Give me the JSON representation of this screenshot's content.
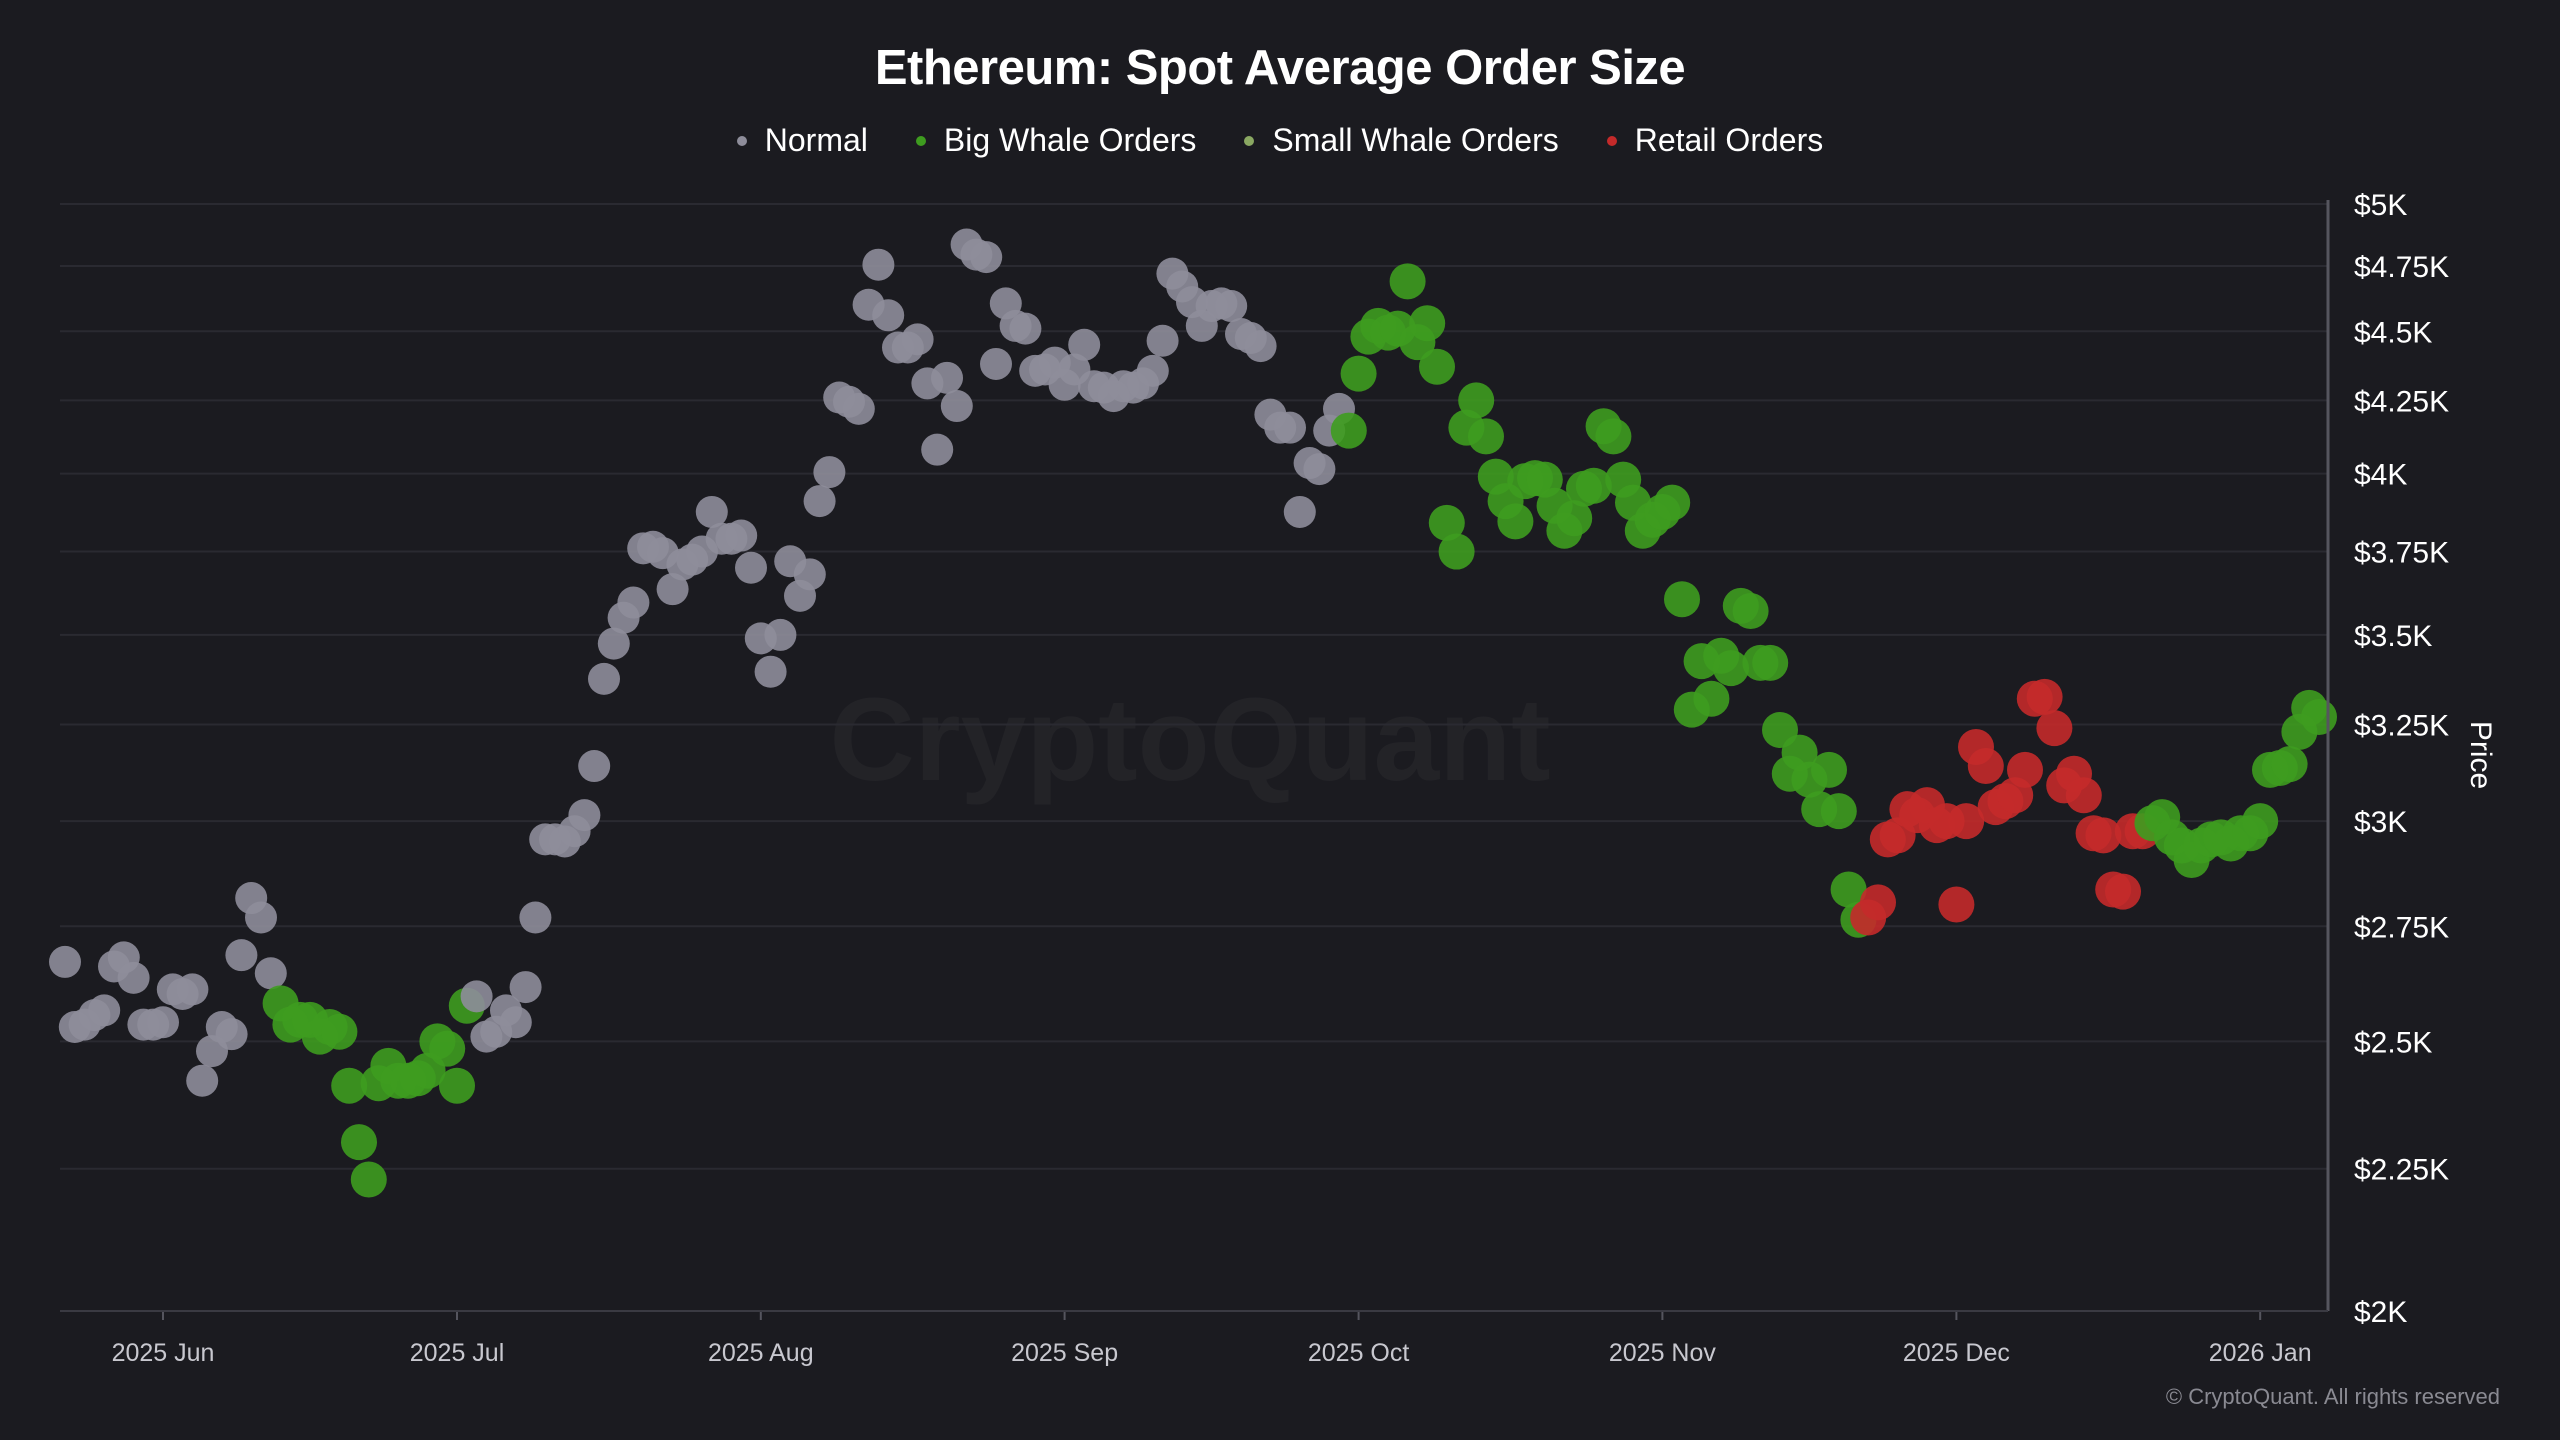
{
  "chart_data": {
    "type": "scatter",
    "title": "Ethereum: Spot Average Order Size",
    "ylabel": "Price",
    "y_scale": "log",
    "ylim": [
      2000,
      5000
    ],
    "xlim": [
      "2025-05-20",
      "2026-01-09"
    ],
    "grid": true,
    "legend_position": "top",
    "watermark": "CryptoQuant",
    "copyright": "© CryptoQuant. All rights reserved",
    "legend": [
      {
        "key": "normal",
        "label": "Normal",
        "color": "#8e8d9a"
      },
      {
        "key": "big_whale",
        "label": "Big Whale Orders",
        "color": "#3e9c1f"
      },
      {
        "key": "small_whale",
        "label": "Small Whale Orders",
        "color": "#8aa862"
      },
      {
        "key": "retail",
        "label": "Retail Orders",
        "color": "#c42a2a"
      }
    ],
    "y_ticks": [
      {
        "label": "$5K",
        "value": 5000
      },
      {
        "label": "$4.75K",
        "value": 4750
      },
      {
        "label": "$4.5K",
        "value": 4500
      },
      {
        "label": "$4.25K",
        "value": 4250
      },
      {
        "label": "$4K",
        "value": 4000
      },
      {
        "label": "$3.75K",
        "value": 3750
      },
      {
        "label": "$3.5K",
        "value": 3500
      },
      {
        "label": "$3.25K",
        "value": 3250
      },
      {
        "label": "$3K",
        "value": 3000
      },
      {
        "label": "$2.75K",
        "value": 2750
      },
      {
        "label": "$2.5K",
        "value": 2500
      },
      {
        "label": "$2.25K",
        "value": 2250
      },
      {
        "label": "$2K",
        "value": 2000
      }
    ],
    "x_ticks": [
      {
        "label": "2025 Jun",
        "date": "2025-06-01"
      },
      {
        "label": "2025 Jul",
        "date": "2025-07-01"
      },
      {
        "label": "2025 Aug",
        "date": "2025-08-01"
      },
      {
        "label": "2025 Sep",
        "date": "2025-09-01"
      },
      {
        "label": "2025 Oct",
        "date": "2025-10-01"
      },
      {
        "label": "2025 Nov",
        "date": "2025-11-01"
      },
      {
        "label": "2025 Dec",
        "date": "2025-12-01"
      },
      {
        "label": "2026 Jan",
        "date": "2026-01-01"
      }
    ],
    "series": [
      {
        "category": "normal",
        "from": "2025-05-22",
        "to": "2025-06-12",
        "prices": [
          2670,
          2530,
          2535,
          2555,
          2565,
          2660,
          2680,
          2635,
          2535,
          2535,
          2540,
          2610,
          2600,
          2610,
          2420,
          2480,
          2530,
          2515,
          2685,
          2815,
          2770,
          2645
        ]
      },
      {
        "category": "big_whale",
        "from": "2025-06-13",
        "to": "2025-07-02",
        "prices": [
          2580,
          2535,
          2545,
          2545,
          2510,
          2530,
          2520,
          2410,
          2300,
          2230,
          2415,
          2450,
          2420,
          2420,
          2425,
          2440,
          2500,
          2485,
          2410,
          2575
        ]
      },
      {
        "category": "normal",
        "from": "2025-07-03",
        "to": "2025-09-29",
        "prices": [
          2595,
          2510,
          2520,
          2565,
          2540,
          2615,
          2770,
          2955,
          2955,
          2950,
          2975,
          3015,
          3140,
          3375,
          3475,
          3550,
          3595,
          3760,
          3765,
          3745,
          3635,
          3710,
          3725,
          3750,
          3875,
          3790,
          3790,
          3800,
          3700,
          3490,
          3395,
          3500,
          3720,
          3615,
          3680,
          3910,
          4005,
          4260,
          4245,
          4220,
          4600,
          4755,
          4560,
          4440,
          4440,
          4470,
          4310,
          4080,
          4330,
          4230,
          4835,
          4795,
          4785,
          4380,
          4605,
          4520,
          4510,
          4355,
          4360,
          4385,
          4305,
          4360,
          4450,
          4300,
          4295,
          4265,
          4300,
          4295,
          4310,
          4355,
          4465,
          4720,
          4670,
          4610,
          4520,
          4595,
          4605,
          4595,
          4490,
          4475,
          4445,
          4200,
          4155,
          4155,
          3875,
          4035,
          4015,
          4145,
          4220
        ]
      },
      {
        "category": "big_whale",
        "from": "2025-09-30",
        "to": "2025-11-21",
        "prices": [
          4145,
          4345,
          4480,
          4520,
          4495,
          4510,
          4690,
          4460,
          4530,
          4370,
          3840,
          3750,
          4155,
          4250,
          4125,
          3990,
          3910,
          3845,
          3975,
          3985,
          3980,
          3895,
          3815,
          3855,
          3950,
          3960,
          4160,
          4125,
          3980,
          3905,
          3815,
          3850,
          3875,
          3905,
          3605,
          3290,
          3425,
          3320,
          3440,
          3405,
          3585,
          3570,
          3420,
          3420,
          3235,
          3120,
          3175,
          3105,
          3030,
          3130,
          3025,
          2835,
          2765
        ]
      },
      {
        "category": "retail",
        "from": "2025-11-22",
        "to": "2025-12-20",
        "prices": [
          2770,
          2805,
          2955,
          2965,
          3030,
          3015,
          3040,
          2990,
          3000,
          2800,
          3000,
          3190,
          3140,
          3035,
          3050,
          3065,
          3130,
          3320,
          3325,
          3240,
          3090,
          3120,
          3065,
          2970,
          2965,
          2835,
          2830,
          2975,
          2975
        ]
      },
      {
        "category": "big_whale",
        "from": "2025-12-21",
        "to": "2026-01-07",
        "prices": [
          2995,
          3010,
          2960,
          2940,
          2905,
          2940,
          2955,
          2960,
          2945,
          2970,
          2970,
          3000,
          3130,
          3135,
          3145,
          3230,
          3295,
          3270
        ]
      }
    ]
  }
}
